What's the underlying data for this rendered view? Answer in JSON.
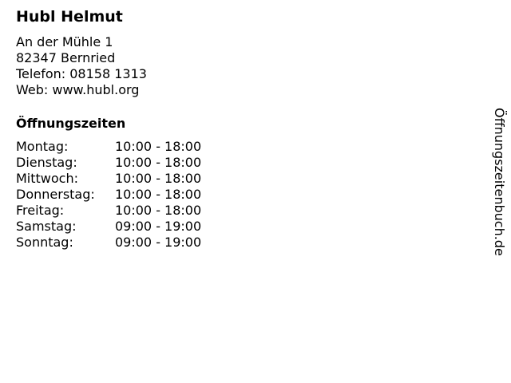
{
  "title": "Hubl Helmut",
  "address": [
    "An der Mühle 1",
    "82347 Bernried",
    "Telefon: 08158 1313",
    "Web: www.hubl.org"
  ],
  "hours_title": "Öffnungszeiten",
  "hours": [
    {
      "day": "Montag:",
      "time": "10:00 - 18:00"
    },
    {
      "day": "Dienstag:",
      "time": "10:00 - 18:00"
    },
    {
      "day": "Mittwoch:",
      "time": "10:00 - 18:00"
    },
    {
      "day": "Donnerstag:",
      "time": "10:00 - 18:00"
    },
    {
      "day": "Freitag:",
      "time": "10:00 - 18:00"
    },
    {
      "day": "Samstag:",
      "time": "09:00 - 19:00"
    },
    {
      "day": "Sonntag:",
      "time": "09:00 - 19:00"
    }
  ],
  "watermark": "Öffnungszeitenbuch.de"
}
